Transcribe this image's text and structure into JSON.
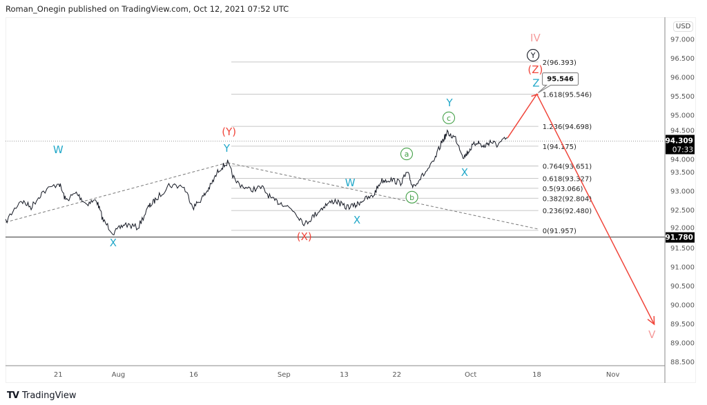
{
  "header": {
    "text": "Roman_Onegin published on TradingView.com, Oct 12, 2021 07:52 UTC"
  },
  "footer": {
    "logo": "TV",
    "brand": "TradingView"
  },
  "currency_button": "USD",
  "colors": {
    "price": "#131722",
    "cyan": "#22a8c9",
    "red": "#f0453a",
    "green": "#43a047",
    "pink": "#f59a9a",
    "grid": "#b5b5b5",
    "tag_bg": "#000000"
  },
  "chart_data": {
    "type": "line",
    "title": "Roman_Onegin published on TradingView.com, Oct 12, 2021 07:52 UTC",
    "xlabel": "",
    "ylabel": "USD",
    "xlim": [
      0,
      87.6
    ],
    "ylim": [
      88.3,
      97.3
    ],
    "x_ticks": [
      {
        "i": 7,
        "label": "21"
      },
      {
        "i": 15,
        "label": "Aug"
      },
      {
        "i": 25,
        "label": "16"
      },
      {
        "i": 37,
        "label": "Sep"
      },
      {
        "i": 45,
        "label": "13"
      },
      {
        "i": 52,
        "label": "22"
      },
      {
        "i": 61.8,
        "label": "Oct"
      },
      {
        "i": 70.6,
        "label": "18"
      },
      {
        "i": 80.7,
        "label": "Nov"
      }
    ],
    "y_ticks": [
      "97.000",
      "96.500",
      "96.000",
      "95.500",
      "95.000",
      "94.500",
      "94.000",
      "93.500",
      "93.000",
      "92.500",
      "92.000",
      "91.500",
      "91.000",
      "90.500",
      "90.000",
      "89.500",
      "89.000",
      "88.500"
    ],
    "series": [
      {
        "name": "Price",
        "x": [
          0,
          2,
          3.4,
          4.8,
          7.1,
          8,
          9.4,
          10.7,
          12.1,
          13,
          14.4,
          15.8,
          17.6,
          19,
          19.9,
          21.7,
          23.6,
          25,
          26.3,
          27.3,
          28.4,
          29.5,
          30.5,
          32.3,
          34.1,
          35.5,
          36.9,
          38.3,
          39.8,
          41,
          42.4,
          43.8,
          45.1,
          46.5,
          47.4,
          48.8,
          49.9,
          51.1,
          52.5,
          53.4,
          54.1,
          55.4,
          56.9,
          58,
          58.7,
          59.8,
          60.9,
          61.8,
          62.7,
          63.5,
          64.4,
          65.3,
          66.7
        ],
        "y": [
          92.17,
          92.75,
          92.57,
          92.94,
          93.21,
          92.75,
          92.94,
          92.66,
          92.75,
          92.21,
          91.88,
          92.12,
          92.03,
          92.57,
          92.75,
          93.15,
          93.12,
          92.57,
          92.85,
          93.15,
          93.57,
          93.74,
          93.26,
          93.03,
          93.08,
          92.75,
          92.66,
          92.48,
          92.12,
          92.35,
          92.61,
          92.75,
          92.57,
          92.61,
          92.75,
          92.85,
          93.26,
          93.3,
          93.21,
          93.48,
          93.12,
          93.39,
          93.75,
          94.3,
          94.52,
          94.39,
          93.88,
          94.12,
          94.3,
          94.15,
          94.3,
          94.21,
          94.39
        ]
      }
    ],
    "fib_levels": [
      {
        "price": 96.393,
        "label": "2(96.393)"
      },
      {
        "price": 95.546,
        "label": "1.618(95.546)"
      },
      {
        "price": 94.698,
        "label": "1.236(94.698)"
      },
      {
        "price": 94.175,
        "label": "1(94.175)"
      },
      {
        "price": 93.651,
        "label": "0.764(93.651)"
      },
      {
        "price": 93.327,
        "label": "0.618(93.327)"
      },
      {
        "price": 93.066,
        "label": "0.5(93.066)"
      },
      {
        "price": 92.804,
        "label": "0.382(92.804)"
      },
      {
        "price": 92.48,
        "label": "0.236(92.480)"
      },
      {
        "price": 91.957,
        "label": "0(91.957)"
      }
    ],
    "fib_range": [
      30,
      70.8
    ],
    "trendlines": [
      {
        "from": [
          0,
          92.17
        ],
        "to": [
          29.5,
          93.74
        ]
      },
      {
        "from": [
          29.5,
          93.74
        ],
        "to": [
          70.8,
          91.99
        ]
      }
    ],
    "support_line": {
      "price": 91.78,
      "label": "91.780"
    },
    "last_price": {
      "price": 94.309,
      "label": "94.309",
      "countdown": "07:33"
    },
    "projection": [
      [
        66.7,
        94.39
      ],
      [
        70.6,
        95.546
      ],
      [
        86.2,
        89.48
      ]
    ],
    "callout": {
      "label": "95.546",
      "i": 70.6,
      "price": 95.546
    },
    "wave_labels": [
      {
        "text": "W",
        "color": "cyan",
        "i": 7.0,
        "p": 93.99
      },
      {
        "text": "X",
        "color": "cyan",
        "i": 14.3,
        "p": 91.54
      },
      {
        "text": "Y",
        "color": "cyan",
        "i": 29.4,
        "p": 94.03
      },
      {
        "text": "(Y)",
        "color": "red",
        "i": 29.7,
        "p": 94.46
      },
      {
        "text": "(X)",
        "color": "red",
        "i": 39.7,
        "p": 91.7
      },
      {
        "text": "W",
        "color": "cyan",
        "i": 45.8,
        "p": 93.12
      },
      {
        "text": "X",
        "color": "cyan",
        "i": 46.7,
        "p": 92.14
      },
      {
        "text": "a",
        "color": "green",
        "circle": true,
        "i": 53.3,
        "p": 93.88
      },
      {
        "text": "b",
        "color": "green",
        "circle": true,
        "i": 54.0,
        "p": 92.74
      },
      {
        "text": "c",
        "color": "green",
        "circle": true,
        "i": 58.9,
        "p": 94.83
      },
      {
        "text": "Y",
        "color": "cyan",
        "i": 59.0,
        "p": 95.23
      },
      {
        "text": "X",
        "color": "cyan",
        "i": 61.0,
        "p": 93.39
      },
      {
        "text": "Z",
        "color": "cyan",
        "i": 70.5,
        "p": 95.75
      },
      {
        "text": "(Z)",
        "color": "red",
        "i": 70.4,
        "p": 96.1
      },
      {
        "text": "Y",
        "color": "price",
        "circle": true,
        "i": 70.1,
        "p": 96.48
      },
      {
        "text": "IV",
        "color": "pink",
        "i": 70.4,
        "p": 96.94
      },
      {
        "text": "V",
        "color": "pink",
        "i": 85.9,
        "p": 89.12
      }
    ]
  }
}
